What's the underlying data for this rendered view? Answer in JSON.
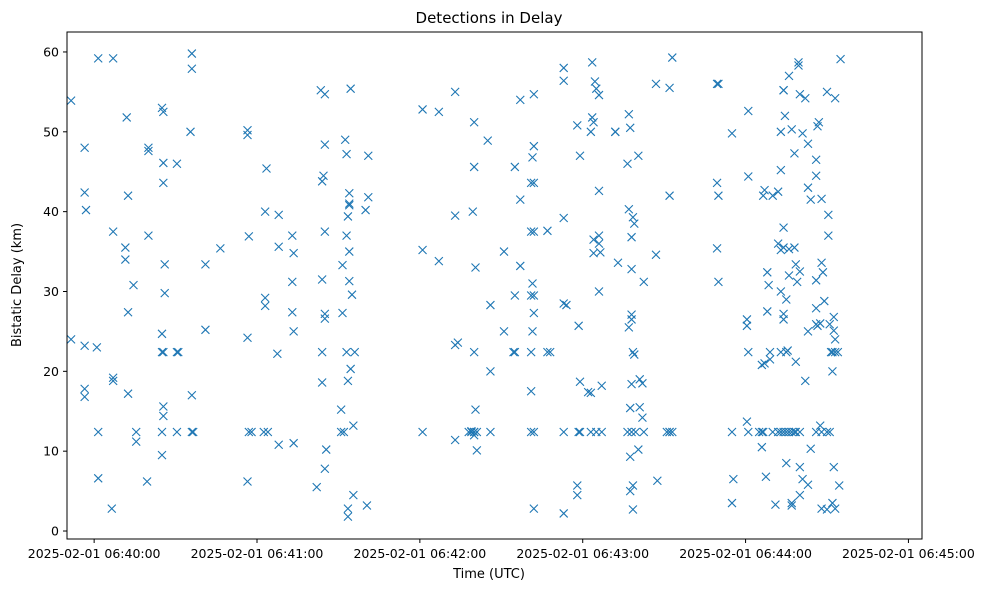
{
  "chart_data": {
    "type": "scatter",
    "title": "Detections in Delay",
    "xlabel": "Time (UTC)",
    "ylabel": "Bistatic Delay (km)",
    "marker": "x",
    "color": "#1f77b4",
    "grid": false,
    "xlim_seconds": [
      -10,
      305
    ],
    "ylim": [
      -1,
      62.5
    ],
    "x_ticks": [
      {
        "label": "2025-02-01 06:40:00",
        "seconds": 0
      },
      {
        "label": "2025-02-01 06:41:00",
        "seconds": 60
      },
      {
        "label": "2025-02-01 06:42:00",
        "seconds": 120
      },
      {
        "label": "2025-02-01 06:43:00",
        "seconds": 180
      },
      {
        "label": "2025-02-01 06:44:00",
        "seconds": 240
      },
      {
        "label": "2025-02-01 06:45:00",
        "seconds": 300
      }
    ],
    "y_ticks": [
      0,
      10,
      20,
      30,
      40,
      50,
      60
    ],
    "points": [
      [
        -8.5,
        53.9
      ],
      [
        -8.5,
        24
      ],
      [
        -3.5,
        48
      ],
      [
        -3.5,
        42.4
      ],
      [
        -3,
        40.2
      ],
      [
        -3.5,
        23.2
      ],
      [
        -3.5,
        17.8
      ],
      [
        -3.5,
        16.8
      ],
      [
        1.5,
        59.2
      ],
      [
        1,
        23
      ],
      [
        1.5,
        12.4
      ],
      [
        1.5,
        6.6
      ],
      [
        7,
        59.2
      ],
      [
        7,
        37.5
      ],
      [
        7,
        19.2
      ],
      [
        7,
        18.8
      ],
      [
        6.5,
        2.8
      ],
      [
        12,
        51.8
      ],
      [
        12.5,
        42
      ],
      [
        11.5,
        35.5
      ],
      [
        11.5,
        34
      ],
      [
        12.5,
        27.4
      ],
      [
        12.5,
        17.2
      ],
      [
        14.5,
        30.8
      ],
      [
        15.5,
        12.4
      ],
      [
        15.5,
        11.2
      ],
      [
        20,
        48
      ],
      [
        20,
        47.6
      ],
      [
        20,
        37
      ],
      [
        19.5,
        6.2
      ],
      [
        25,
        53
      ],
      [
        25.5,
        52.5
      ],
      [
        25.5,
        46.1
      ],
      [
        25.5,
        43.6
      ],
      [
        26,
        33.4
      ],
      [
        26,
        29.8
      ],
      [
        25,
        24.7
      ],
      [
        25,
        22.4
      ],
      [
        25.5,
        22.4
      ],
      [
        25.5,
        15.6
      ],
      [
        25.5,
        14.4
      ],
      [
        25,
        12.4
      ],
      [
        25,
        9.5
      ],
      [
        30.5,
        46
      ],
      [
        30.5,
        22.4
      ],
      [
        31,
        22.4
      ],
      [
        30.5,
        12.4
      ],
      [
        36,
        59.8
      ],
      [
        36,
        57.9
      ],
      [
        35.5,
        50
      ],
      [
        36,
        17
      ],
      [
        36,
        12.4
      ],
      [
        36.5,
        12.4
      ],
      [
        41,
        33.4
      ],
      [
        41,
        25.2
      ],
      [
        46.5,
        35.4
      ],
      [
        56.5,
        50.2
      ],
      [
        56.5,
        49.6
      ],
      [
        57,
        36.9
      ],
      [
        56.5,
        24.2
      ],
      [
        57,
        12.4
      ],
      [
        58,
        12.4
      ],
      [
        56.5,
        6.2
      ],
      [
        63.5,
        45.4
      ],
      [
        63,
        40
      ],
      [
        63,
        29.2
      ],
      [
        63,
        28.2
      ],
      [
        62.5,
        12.4
      ],
      [
        64,
        12.4
      ],
      [
        68,
        39.6
      ],
      [
        68,
        35.6
      ],
      [
        67.5,
        22.2
      ],
      [
        68,
        10.8
      ],
      [
        73,
        37
      ],
      [
        73.5,
        34.8
      ],
      [
        73,
        31.2
      ],
      [
        73,
        27.4
      ],
      [
        73.5,
        25
      ],
      [
        73.5,
        11
      ],
      [
        82,
        5.5
      ],
      [
        83.5,
        55.2
      ],
      [
        85,
        54.7
      ],
      [
        85,
        48.4
      ],
      [
        84,
        43.8
      ],
      [
        84.5,
        44.5
      ],
      [
        85,
        37.5
      ],
      [
        84,
        31.5
      ],
      [
        85,
        27.2
      ],
      [
        85,
        26.6
      ],
      [
        84,
        22.4
      ],
      [
        84,
        18.6
      ],
      [
        85.5,
        10.2
      ],
      [
        85,
        7.8
      ],
      [
        91.5,
        33.3
      ],
      [
        91.5,
        27.3
      ],
      [
        91,
        15.2
      ],
      [
        91,
        12.4
      ],
      [
        92,
        12.4
      ],
      [
        92.5,
        49
      ],
      [
        93,
        47.2
      ],
      [
        93,
        37
      ],
      [
        93.5,
        39.4
      ],
      [
        94,
        40.8
      ],
      [
        94,
        42.3
      ],
      [
        94,
        41
      ],
      [
        94,
        35
      ],
      [
        94,
        31.3
      ],
      [
        95,
        29.6
      ],
      [
        93,
        22.4
      ],
      [
        93.5,
        18.8
      ],
      [
        94.5,
        20.3
      ],
      [
        96,
        22.4
      ],
      [
        95.5,
        13.2
      ],
      [
        94.5,
        55.4
      ],
      [
        95.5,
        4.5
      ],
      [
        93.5,
        2.8
      ],
      [
        93.5,
        1.8
      ],
      [
        100,
        40.2
      ],
      [
        101,
        41.8
      ],
      [
        101,
        47
      ],
      [
        100.5,
        3.2
      ],
      [
        121,
        52.8
      ],
      [
        121,
        35.2
      ],
      [
        121,
        12.4
      ],
      [
        127,
        52.5
      ],
      [
        127,
        33.8
      ],
      [
        133,
        55
      ],
      [
        134,
        23.6
      ],
      [
        133,
        23.3
      ],
      [
        133,
        39.5
      ],
      [
        133,
        11.4
      ],
      [
        138,
        12.4
      ],
      [
        139,
        12.5
      ],
      [
        139,
        12.4
      ],
      [
        140,
        12.4
      ],
      [
        140,
        12
      ],
      [
        140,
        12.4
      ],
      [
        139.5,
        40
      ],
      [
        140,
        45.6
      ],
      [
        140,
        51.2
      ],
      [
        140,
        22.4
      ],
      [
        140.5,
        15.2
      ],
      [
        141,
        12.4
      ],
      [
        141,
        10.1
      ],
      [
        140.5,
        33
      ],
      [
        145,
        48.9
      ],
      [
        146,
        28.3
      ],
      [
        146,
        20
      ],
      [
        146,
        12.4
      ],
      [
        151,
        35
      ],
      [
        151,
        25
      ],
      [
        155,
        45.6
      ],
      [
        157,
        41.5
      ],
      [
        157,
        54
      ],
      [
        157,
        33.2
      ],
      [
        155,
        29.5
      ],
      [
        154.5,
        22.4
      ],
      [
        155,
        22.4
      ],
      [
        162,
        54.7
      ],
      [
        162,
        48.2
      ],
      [
        161.5,
        46.8
      ],
      [
        161,
        43.6
      ],
      [
        162,
        43.6
      ],
      [
        161,
        37.5
      ],
      [
        162,
        37.5
      ],
      [
        161,
        29.5
      ],
      [
        162,
        29.5
      ],
      [
        161.5,
        31
      ],
      [
        162,
        27.3
      ],
      [
        161.5,
        25
      ],
      [
        161,
        22.4
      ],
      [
        161,
        17.5
      ],
      [
        161,
        12.4
      ],
      [
        162,
        12.4
      ],
      [
        162,
        2.8
      ],
      [
        167,
        37.6
      ],
      [
        167,
        22.4
      ],
      [
        168,
        22.4
      ],
      [
        173,
        58
      ],
      [
        173,
        56.4
      ],
      [
        173,
        39.2
      ],
      [
        173,
        28.5
      ],
      [
        174,
        28.3
      ],
      [
        173,
        12.4
      ],
      [
        173,
        2.2
      ],
      [
        178,
        50.8
      ],
      [
        179,
        47
      ],
      [
        178.5,
        25.7
      ],
      [
        179,
        18.7
      ],
      [
        178.5,
        12.4
      ],
      [
        179,
        12.4
      ],
      [
        178,
        5.7
      ],
      [
        178,
        4.5
      ],
      [
        183.5,
        58.7
      ],
      [
        183,
        50
      ],
      [
        183.5,
        51.8
      ],
      [
        184,
        51.2
      ],
      [
        184.5,
        56.3
      ],
      [
        185,
        55.4
      ],
      [
        186,
        54.6
      ],
      [
        186,
        42.6
      ],
      [
        184,
        36.5
      ],
      [
        184,
        34.8
      ],
      [
        186,
        37
      ],
      [
        186,
        36
      ],
      [
        186.5,
        34.9
      ],
      [
        186,
        30
      ],
      [
        182,
        17.4
      ],
      [
        183,
        17.3
      ],
      [
        183,
        12.4
      ],
      [
        185,
        12.4
      ],
      [
        187,
        12.4
      ],
      [
        187,
        18.2
      ],
      [
        192,
        50
      ],
      [
        192,
        50
      ],
      [
        193,
        33.6
      ],
      [
        197,
        52.2
      ],
      [
        197.5,
        50.5
      ],
      [
        196.5,
        46
      ],
      [
        197,
        40.3
      ],
      [
        198.5,
        39.3
      ],
      [
        199,
        38.5
      ],
      [
        198,
        36.8
      ],
      [
        198,
        32.8
      ],
      [
        198,
        27.1
      ],
      [
        198,
        26.5
      ],
      [
        197,
        25.5
      ],
      [
        198,
        18.4
      ],
      [
        197.5,
        15.4
      ],
      [
        198.5,
        22.4
      ],
      [
        199,
        22.1
      ],
      [
        196.5,
        12.4
      ],
      [
        198,
        12.4
      ],
      [
        199.5,
        12.4
      ],
      [
        197.5,
        9.3
      ],
      [
        198.5,
        5.7
      ],
      [
        197.5,
        5
      ],
      [
        198.5,
        2.7
      ],
      [
        200.5,
        47
      ],
      [
        200.5,
        10.2
      ],
      [
        201,
        19
      ],
      [
        201,
        15.5
      ],
      [
        202,
        18.5
      ],
      [
        202,
        14.2
      ],
      [
        202.5,
        12.4
      ],
      [
        202.5,
        31.2
      ],
      [
        207,
        56
      ],
      [
        207,
        34.6
      ],
      [
        207.5,
        6.3
      ],
      [
        213,
        59.3
      ],
      [
        212,
        55.5
      ],
      [
        212,
        42
      ],
      [
        211,
        12.4
      ],
      [
        212,
        12.4
      ],
      [
        212,
        12.4
      ],
      [
        213,
        12.4
      ],
      [
        230,
        56
      ],
      [
        229.5,
        56
      ],
      [
        229.5,
        43.6
      ],
      [
        230,
        42
      ],
      [
        229.5,
        35.4
      ],
      [
        230,
        31.2
      ],
      [
        235,
        49.8
      ],
      [
        235,
        12.4
      ],
      [
        235.5,
        6.5
      ],
      [
        235,
        3.5
      ],
      [
        241,
        52.6
      ],
      [
        241,
        44.4
      ],
      [
        240.5,
        26.5
      ],
      [
        240.5,
        25.7
      ],
      [
        241,
        22.4
      ],
      [
        240.5,
        13.7
      ],
      [
        241,
        12.4
      ],
      [
        246,
        12.4
      ],
      [
        246.5,
        12.4
      ],
      [
        246,
        10.5
      ],
      [
        246,
        20.8
      ],
      [
        247,
        21
      ],
      [
        249,
        21.5
      ],
      [
        249,
        22.4
      ],
      [
        248,
        32.4
      ],
      [
        248.5,
        30.8
      ],
      [
        248,
        27.5
      ],
      [
        247.5,
        6.8
      ],
      [
        246.5,
        42
      ],
      [
        247,
        42.7
      ],
      [
        252,
        42.5
      ],
      [
        250,
        42
      ],
      [
        252,
        36
      ],
      [
        253,
        45.2
      ],
      [
        253,
        50
      ],
      [
        254,
        55.2
      ],
      [
        254,
        55.2
      ],
      [
        254.5,
        52
      ],
      [
        253,
        35.2
      ],
      [
        254,
        35.5
      ],
      [
        254,
        38
      ],
      [
        253,
        30
      ],
      [
        254,
        26.5
      ],
      [
        254,
        27.2
      ],
      [
        253,
        22.4
      ],
      [
        255,
        22.4
      ],
      [
        255.5,
        22.6
      ],
      [
        255,
        29
      ],
      [
        256,
        35.3
      ],
      [
        256,
        32
      ],
      [
        257,
        50.3
      ],
      [
        258,
        47.3
      ],
      [
        258,
        35.5
      ],
      [
        258.5,
        33.4
      ],
      [
        260,
        32.5
      ],
      [
        259,
        31.2
      ],
      [
        258.5,
        21.2
      ],
      [
        256,
        57
      ],
      [
        259.5,
        58.7
      ],
      [
        259.5,
        58.3
      ],
      [
        260,
        54.7
      ],
      [
        261,
        49.8
      ],
      [
        262,
        54.2
      ],
      [
        263,
        48.5
      ],
      [
        263,
        43
      ],
      [
        264,
        41.5
      ],
      [
        266,
        46.5
      ],
      [
        266,
        44.5
      ],
      [
        266.5,
        50.7
      ],
      [
        267,
        51.2
      ],
      [
        268,
        41.6
      ],
      [
        268,
        33.6
      ],
      [
        268.5,
        32.4
      ],
      [
        266,
        31.4
      ],
      [
        266,
        27.9
      ],
      [
        266,
        25.9
      ],
      [
        263,
        25
      ],
      [
        262,
        18.8
      ],
      [
        267.5,
        26
      ],
      [
        269,
        28.8
      ],
      [
        270.5,
        39.6
      ],
      [
        270.5,
        37
      ],
      [
        271,
        25.9
      ],
      [
        271.5,
        22.4
      ],
      [
        272,
        22.4
      ],
      [
        272.5,
        26.8
      ],
      [
        272.5,
        25.1
      ],
      [
        273,
        24
      ],
      [
        273,
        22.4
      ],
      [
        274,
        22.4
      ],
      [
        272,
        20
      ],
      [
        272.5,
        8
      ],
      [
        274.5,
        5.7
      ],
      [
        272,
        3.5
      ],
      [
        273,
        2.8
      ],
      [
        270,
        2.7
      ],
      [
        268,
        2.8
      ],
      [
        270,
        12.4
      ],
      [
        271,
        12.4
      ],
      [
        268,
        12.4
      ],
      [
        267.5,
        13.2
      ],
      [
        266,
        12.4
      ],
      [
        264,
        10.3
      ],
      [
        263,
        5.8
      ],
      [
        261,
        6.5
      ],
      [
        260,
        8
      ],
      [
        260,
        4.5
      ],
      [
        257,
        3.2
      ],
      [
        257,
        3.5
      ],
      [
        255,
        8.5
      ],
      [
        253,
        12.4
      ],
      [
        254,
        12.4
      ],
      [
        255,
        12.4
      ],
      [
        256,
        12.4
      ],
      [
        257,
        12.4
      ],
      [
        258,
        12.4
      ],
      [
        258.5,
        12.4
      ],
      [
        251,
        3.3
      ],
      [
        245,
        12.4
      ],
      [
        250,
        12.4
      ],
      [
        252,
        12.4
      ],
      [
        273,
        54.2
      ],
      [
        275,
        59.1
      ],
      [
        270,
        55
      ],
      [
        266.5,
        25.7
      ],
      [
        260,
        12.4
      ]
    ]
  }
}
